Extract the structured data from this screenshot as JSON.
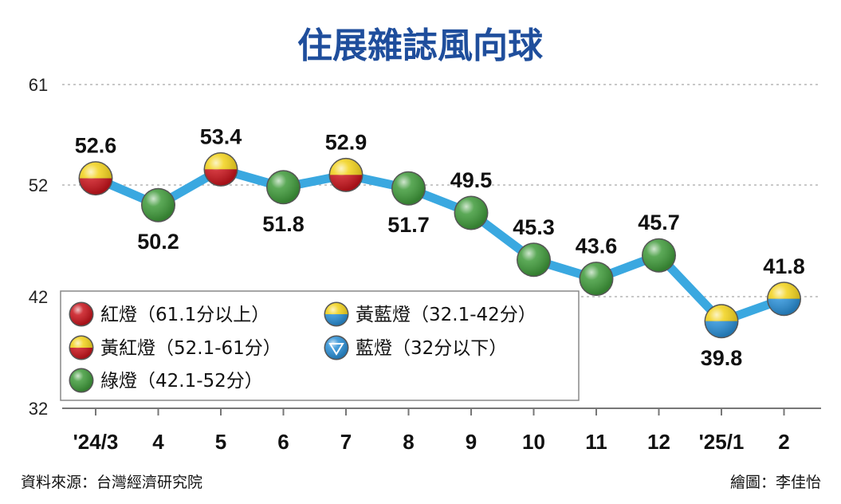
{
  "chart_data": {
    "type": "line",
    "title": "住展雜誌風向球",
    "categories": [
      "'24/3",
      "4",
      "5",
      "6",
      "7",
      "8",
      "9",
      "10",
      "11",
      "12",
      "'25/1",
      "2"
    ],
    "values": [
      52.6,
      50.2,
      53.4,
      51.8,
      52.9,
      51.7,
      49.5,
      45.3,
      43.6,
      45.7,
      39.8,
      41.8
    ],
    "signals": [
      "yellow-red",
      "green",
      "yellow-red",
      "green",
      "yellow-red",
      "green",
      "green",
      "green",
      "green",
      "green",
      "yellow-blue",
      "yellow-blue"
    ],
    "label_positions": [
      "above",
      "below",
      "above",
      "below",
      "above",
      "below",
      "above",
      "above",
      "above",
      "above",
      "below",
      "above"
    ],
    "yticks": [
      32,
      42,
      52,
      61
    ],
    "ylim": [
      32,
      61
    ],
    "grid": "dashed horizontal",
    "legend": {
      "placement": "bottom-left",
      "items": [
        {
          "key": "red",
          "label": "紅燈（61.1分以上）"
        },
        {
          "key": "yellow-blue",
          "label": "黃藍燈（32.1-42分）"
        },
        {
          "key": "yellow-red",
          "label": "黃紅燈（52.1-61分）"
        },
        {
          "key": "blue",
          "label": "藍燈（32分以下）"
        },
        {
          "key": "green",
          "label": "綠燈（42.1-52分）"
        }
      ]
    },
    "colors": {
      "line": "#3aa8e0",
      "red": "#c8141c",
      "yellow": "#f2d21a",
      "green": "#3f9a3a",
      "blue": "#2a8fd6",
      "title": "#1f4e9c"
    }
  },
  "footer": {
    "source": "資料來源：台灣經濟研究院",
    "author": "繪圖：李佳怡"
  }
}
